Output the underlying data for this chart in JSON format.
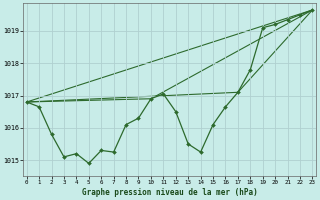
{
  "title": "Graphe pression niveau de la mer (hPa)",
  "background_color": "#c8ece8",
  "grid_color": "#b0d0d0",
  "line_color": "#2d6a2d",
  "x_ticks": [
    0,
    1,
    2,
    3,
    4,
    5,
    6,
    7,
    8,
    9,
    10,
    11,
    12,
    13,
    14,
    15,
    16,
    17,
    18,
    19,
    20,
    21,
    22,
    23
  ],
  "y_ticks": [
    1015,
    1016,
    1017,
    1018,
    1019
  ],
  "ylim": [
    1014.5,
    1019.85
  ],
  "xlim": [
    -0.3,
    23.3
  ],
  "series_main": {
    "x": [
      0,
      1,
      2,
      3,
      4,
      5,
      6,
      7,
      8,
      9,
      10,
      11,
      12,
      13,
      14,
      15,
      16,
      17,
      18,
      19,
      20,
      21,
      22,
      23
    ],
    "y": [
      1016.8,
      1016.65,
      1015.8,
      1015.1,
      1015.2,
      1014.9,
      1015.3,
      1015.25,
      1016.1,
      1016.3,
      1016.9,
      1017.05,
      1016.5,
      1015.5,
      1015.25,
      1016.1,
      1016.65,
      1017.1,
      1017.8,
      1019.1,
      1019.2,
      1019.35,
      1019.5,
      1019.65
    ]
  },
  "trend_lines": [
    {
      "x": [
        0,
        23
      ],
      "y": [
        1016.8,
        1019.65
      ]
    },
    {
      "x": [
        0,
        10,
        23
      ],
      "y": [
        1016.8,
        1016.9,
        1019.65
      ]
    },
    {
      "x": [
        0,
        17,
        23
      ],
      "y": [
        1016.8,
        1017.1,
        1019.65
      ]
    }
  ]
}
